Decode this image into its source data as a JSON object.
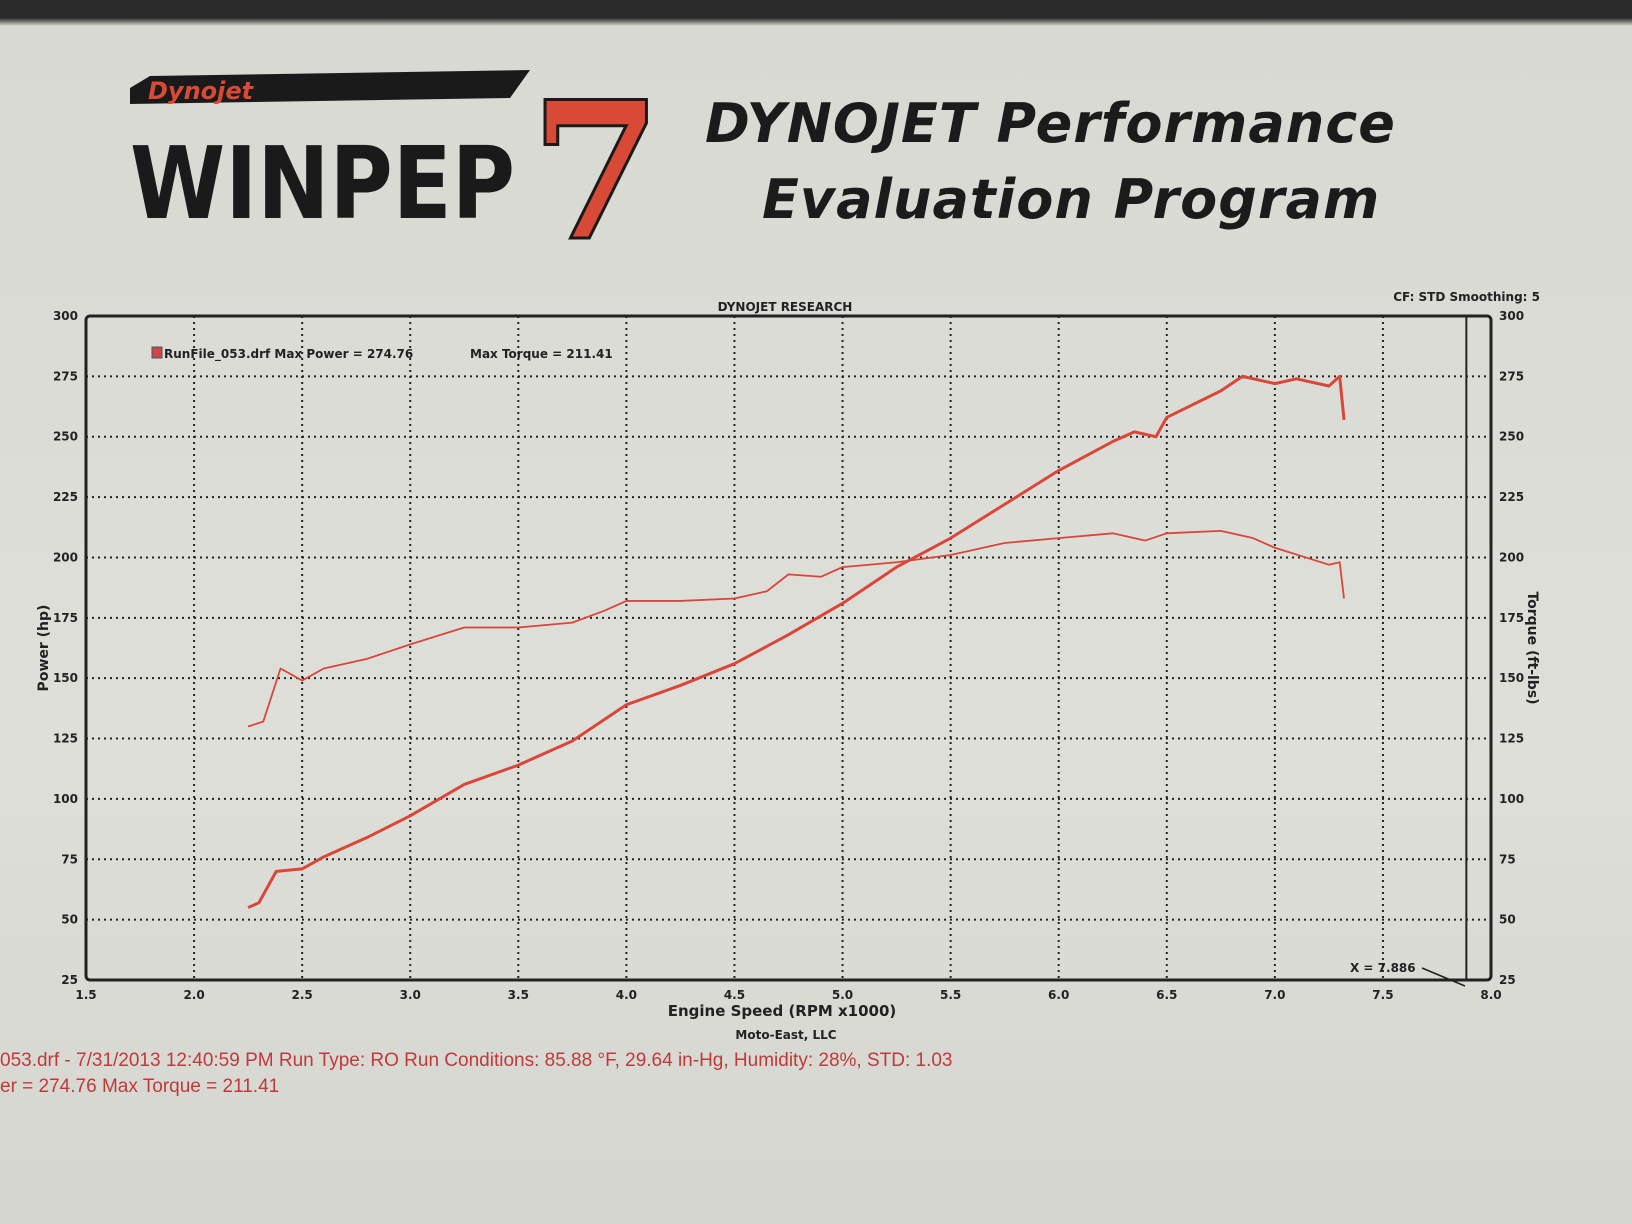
{
  "header": {
    "logo_brand": "Dynojet",
    "logo_product": "WINPEP",
    "logo_version": "7",
    "title_line1": "DYNOJET Performance",
    "title_line2": "Evaluation Program"
  },
  "chart_meta": {
    "cf_smoothing": "CF: STD  Smoothing: 5",
    "cursor_label": "X = 7.886",
    "credit": "Moto-East, LLC"
  },
  "footer": {
    "line1": "053.drf - 7/31/2013 12:40:59 PM  Run Type: RO  Run Conditions: 85.88 °F, 29.64 in-Hg,  Humidity:  28%, STD: 1.03",
    "line2": "er = 274.76  Max Torque = 211.41"
  },
  "colors": {
    "series": "#d9463a",
    "grid": "#222222"
  },
  "chart_data": {
    "type": "line",
    "title": "DYNOJET RESEARCH",
    "xlabel": "Engine Speed (RPM x1000)",
    "ylabel": "Power (hp)",
    "y2label": "Torque (ft-lbs)",
    "xlim": [
      1.5,
      8.0
    ],
    "ylim": [
      25,
      300
    ],
    "y2lim": [
      25,
      300
    ],
    "xticks": [
      "1.5",
      "2.0",
      "2.5",
      "3.0",
      "3.5",
      "4.0",
      "4.5",
      "5.0",
      "5.5",
      "6.0",
      "6.5",
      "7.0",
      "7.5",
      "8.0"
    ],
    "yticks": [
      "25",
      "50",
      "75",
      "100",
      "125",
      "150",
      "175",
      "200",
      "225",
      "250",
      "275",
      "300"
    ],
    "grid": true,
    "legend": {
      "position": "top-left",
      "text": "RunFile_053.drf Max Power = 274.76",
      "text2": "Max Torque = 211.41"
    },
    "cursor_x": 7.886,
    "series": [
      {
        "name": "Power",
        "x": [
          2.25,
          2.3,
          2.38,
          2.5,
          2.6,
          2.8,
          3.0,
          3.25,
          3.5,
          3.75,
          3.9,
          4.0,
          4.25,
          4.5,
          4.75,
          5.0,
          5.25,
          5.5,
          5.75,
          6.0,
          6.25,
          6.35,
          6.45,
          6.5,
          6.75,
          6.85,
          7.0,
          7.1,
          7.25,
          7.3,
          7.32
        ],
        "y": [
          55,
          57,
          70,
          71,
          76,
          84,
          93,
          106,
          114,
          124,
          133,
          139,
          147,
          156,
          168,
          181,
          196,
          208,
          222,
          236,
          248,
          252,
          250,
          258,
          269,
          275,
          272,
          274,
          271,
          275,
          257
        ]
      },
      {
        "name": "Torque",
        "x": [
          2.25,
          2.32,
          2.4,
          2.5,
          2.6,
          2.8,
          3.0,
          3.25,
          3.5,
          3.75,
          3.9,
          4.0,
          4.25,
          4.5,
          4.65,
          4.75,
          4.9,
          5.0,
          5.25,
          5.5,
          5.75,
          6.0,
          6.25,
          6.4,
          6.5,
          6.75,
          6.9,
          7.0,
          7.25,
          7.3,
          7.32
        ],
        "y": [
          130,
          132,
          154,
          149,
          154,
          158,
          164,
          171,
          171,
          173,
          178,
          182,
          182,
          183,
          186,
          193,
          192,
          196,
          198,
          201,
          206,
          208,
          210,
          207,
          210,
          211,
          208,
          204,
          197,
          198,
          183
        ]
      }
    ]
  }
}
